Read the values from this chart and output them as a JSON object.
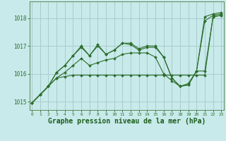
{
  "background_color": "#c8eaea",
  "grid_color": "#aacccc",
  "line_color": "#2d6e2d",
  "marker_color": "#2d6e2d",
  "xlabel": "Graphe pression niveau de la mer (hPa)",
  "xlabel_fontsize": 7,
  "x_ticks": [
    0,
    1,
    2,
    3,
    4,
    5,
    6,
    7,
    8,
    9,
    10,
    11,
    12,
    13,
    14,
    15,
    16,
    17,
    18,
    19,
    20,
    21,
    22,
    23
  ],
  "ylim": [
    1014.7,
    1018.6
  ],
  "xlim": [
    -0.3,
    23.3
  ],
  "yticks": [
    1015,
    1016,
    1017,
    1018
  ],
  "series": [
    [
      1014.95,
      1015.25,
      1015.55,
      1015.85,
      1015.9,
      1015.95,
      1015.95,
      1015.95,
      1015.95,
      1015.95,
      1015.95,
      1015.95,
      1015.95,
      1015.95,
      1015.95,
      1015.95,
      1015.95,
      1015.95,
      1015.95,
      1015.95,
      1015.95,
      1015.95,
      1018.05,
      1018.1
    ],
    [
      1014.95,
      1015.25,
      1015.55,
      1015.85,
      1016.05,
      1016.3,
      1016.55,
      1016.3,
      1016.4,
      1016.5,
      1016.55,
      1016.7,
      1016.75,
      1016.75,
      1016.75,
      1016.6,
      1016.0,
      1015.75,
      1015.55,
      1015.6,
      1016.1,
      1016.1,
      1018.05,
      1018.1
    ],
    [
      1014.95,
      1015.25,
      1015.55,
      1016.05,
      1016.3,
      1016.65,
      1016.95,
      1016.65,
      1017.0,
      1016.7,
      1016.85,
      1017.1,
      1017.05,
      1016.85,
      1016.95,
      1016.95,
      1016.6,
      1015.85,
      1015.55,
      1015.6,
      1016.1,
      1017.9,
      1018.1,
      1018.15
    ],
    [
      1014.95,
      1015.25,
      1015.55,
      1016.05,
      1016.3,
      1016.65,
      1017.0,
      1016.65,
      1017.05,
      1016.7,
      1016.85,
      1017.1,
      1017.1,
      1016.9,
      1017.0,
      1017.0,
      1016.6,
      1015.85,
      1015.55,
      1015.65,
      1016.1,
      1018.05,
      1018.15,
      1018.2
    ]
  ]
}
